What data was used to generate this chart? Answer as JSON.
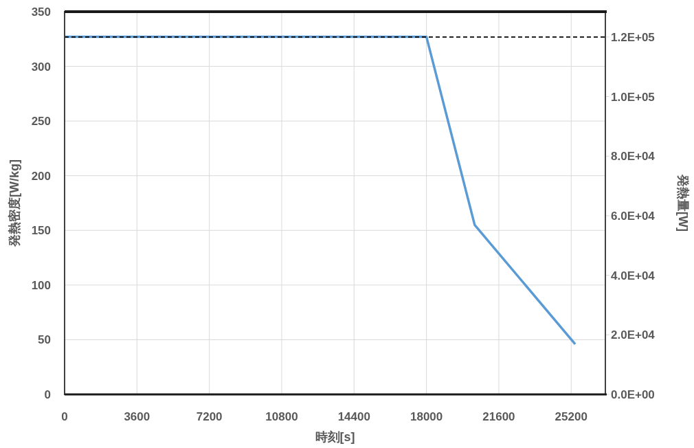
{
  "chart_data": {
    "type": "line",
    "xlabel": "時刻[s]",
    "ylabel": "発熱密度[W/kg]",
    "y2label": "発熱量[W]",
    "x": [
      0,
      18000,
      20400,
      25400
    ],
    "series": [
      {
        "color": "#5b9bd5",
        "values": [
          327,
          327,
          155,
          46
        ]
      }
    ],
    "xlim": [
      0,
      26900
    ],
    "xticks": [
      0,
      3600,
      7200,
      10800,
      14400,
      18000,
      21600,
      25200
    ],
    "ylim": [
      0,
      350
    ],
    "yticks": [
      0,
      50,
      100,
      150,
      200,
      250,
      300,
      350
    ],
    "y2lim": [
      0,
      128500
    ],
    "y2ticks": [
      {
        "value": 0,
        "label": "0.0E+00"
      },
      {
        "value": 20000,
        "label": "2.0E+04"
      },
      {
        "value": 40000,
        "label": "4.0E+04"
      },
      {
        "value": 60000,
        "label": "6.0E+04"
      },
      {
        "value": 80000,
        "label": "8.0E+04"
      },
      {
        "value": 100000,
        "label": "1.0E+05"
      },
      {
        "value": 120000,
        "label": "1.2E+05"
      }
    ],
    "ref_lines": [
      {
        "axis": "y2",
        "value": 120000,
        "color": "#000000",
        "line_style": "dashed"
      }
    ],
    "grid": true,
    "marker": "none",
    "line_style": "solid"
  }
}
